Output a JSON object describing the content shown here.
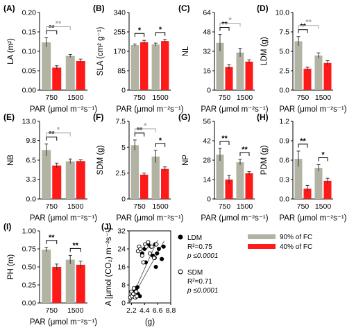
{
  "colors": {
    "fc90": "#b3b3a4",
    "fc40": "#ff1a1a",
    "sig_strong": "#000000",
    "sig_weak": "#a6a6a6"
  },
  "legend": [
    {
      "label": "90% of FC",
      "color": "#b3b3a4"
    },
    {
      "label": "40% of FC",
      "color": "#ff1a1a"
    }
  ],
  "scatter_legend": [
    {
      "label": "LDM",
      "marker": "filled-circle",
      "r2": "R²=0.75",
      "p": "p ≤0.0001"
    },
    {
      "label": "SDM",
      "marker": "open-circle",
      "r2": "R²=0.71",
      "p": "p ≤0.0001"
    }
  ],
  "chart_data": [
    {
      "id": "A",
      "title": "(A)",
      "type": "bar",
      "ylabel": "LA (m²)",
      "xlabel": "PAR (μmol m⁻²s⁻¹)",
      "categories": [
        "750",
        "1500"
      ],
      "ylim": [
        0,
        0.2
      ],
      "yticks": [
        0,
        0.05,
        0.1,
        0.15,
        0.2
      ],
      "ytick_labels": [
        "0.00",
        "0.05",
        "0.10",
        "0.15",
        "0.20"
      ],
      "series": [
        {
          "name": "90% of FC",
          "values": [
            0.123,
            0.088
          ],
          "err": [
            0.012,
            0.004
          ]
        },
        {
          "name": "40% of FC",
          "values": [
            0.058,
            0.075
          ],
          "err": [
            0.005,
            0.005
          ]
        }
      ],
      "annotations": [
        {
          "type": "within",
          "cat": 0,
          "text": "**",
          "style": "strong"
        },
        {
          "type": "between",
          "series": 0,
          "text": "**",
          "style": "weak"
        }
      ]
    },
    {
      "id": "B",
      "title": "(B)",
      "type": "bar",
      "ylabel": "SLA (cm² g⁻¹)",
      "xlabel": "PAR (μmol m⁻²s⁻¹)",
      "categories": [
        "750",
        "1500"
      ],
      "ylim": [
        0,
        340
      ],
      "yticks": [
        0,
        85,
        170,
        255,
        340
      ],
      "ytick_labels": [
        "0",
        "85",
        "170",
        "255",
        "340"
      ],
      "series": [
        {
          "name": "90% of FC",
          "values": [
            197,
            200
          ],
          "err": [
            5,
            6
          ]
        },
        {
          "name": "40% of FC",
          "values": [
            210,
            215
          ],
          "err": [
            8,
            7
          ]
        }
      ],
      "annotations": [
        {
          "type": "within",
          "cat": 0,
          "text": "*",
          "style": "strong"
        },
        {
          "type": "within",
          "cat": 1,
          "text": "*",
          "style": "strong"
        }
      ]
    },
    {
      "id": "C",
      "title": "(C)",
      "type": "bar",
      "ylabel": "NL",
      "xlabel": "PAR (μmol m⁻²s⁻¹)",
      "categories": [
        "750",
        "1500"
      ],
      "ylim": [
        0,
        64
      ],
      "yticks": [
        0,
        16,
        32,
        48,
        64
      ],
      "ytick_labels": [
        "0",
        "16",
        "32",
        "48",
        "64"
      ],
      "series": [
        {
          "name": "90% of FC",
          "values": [
            39,
            31
          ],
          "err": [
            7,
            3.5
          ]
        },
        {
          "name": "40% of FC",
          "values": [
            19,
            23.5
          ],
          "err": [
            2,
            1.5
          ]
        }
      ],
      "annotations": [
        {
          "type": "within",
          "cat": 0,
          "text": "**",
          "style": "strong"
        },
        {
          "type": "between",
          "series": 0,
          "text": "*",
          "style": "weak"
        }
      ]
    },
    {
      "id": "D",
      "title": "(D)",
      "type": "bar",
      "ylabel": "LDM (g)",
      "xlabel": "PAR (μmol m⁻²s⁻¹)",
      "categories": [
        "750",
        "1500"
      ],
      "ylim": [
        0,
        10
      ],
      "yticks": [
        0,
        2.5,
        5.0,
        7.5,
        10.0
      ],
      "ytick_labels": [
        "0.0",
        "2.5",
        "5.0",
        "7.5",
        "10.0"
      ],
      "series": [
        {
          "name": "90% of FC",
          "values": [
            6.3,
            4.45
          ],
          "err": [
            0.6,
            0.35
          ]
        },
        {
          "name": "40% of FC",
          "values": [
            2.75,
            3.5
          ],
          "err": [
            0.2,
            0.3
          ]
        }
      ],
      "annotations": [
        {
          "type": "within",
          "cat": 0,
          "text": "**",
          "style": "strong"
        },
        {
          "type": "between",
          "series": 0,
          "text": "**",
          "style": "weak"
        }
      ]
    },
    {
      "id": "E",
      "title": "(E)",
      "type": "bar",
      "ylabel": "NB",
      "xlabel": "PAR (μmol m⁻²s⁻¹)",
      "categories": [
        "750",
        "1500"
      ],
      "ylim": [
        0,
        13
      ],
      "yticks": [
        0,
        3.3,
        6.5,
        9.8,
        13.0
      ],
      "ytick_labels": [
        "0.0",
        "3.3",
        "6.5",
        "9.8",
        "13.0"
      ],
      "series": [
        {
          "name": "90% of FC",
          "values": [
            8.2,
            6.3
          ],
          "err": [
            1.0,
            0.4
          ]
        },
        {
          "name": "40% of FC",
          "values": [
            5.6,
            6.35
          ],
          "err": [
            0.4,
            0.2
          ]
        }
      ],
      "annotations": [
        {
          "type": "within",
          "cat": 0,
          "text": "**",
          "style": "strong"
        },
        {
          "type": "between",
          "series": 0,
          "text": "*",
          "style": "weak"
        }
      ]
    },
    {
      "id": "F",
      "title": "(F)",
      "type": "bar",
      "ylabel": "SDM (g)",
      "xlabel": "PAR (μmol m⁻²s⁻¹)",
      "categories": [
        "750",
        "1500"
      ],
      "ylim": [
        0,
        7.5
      ],
      "yticks": [
        0,
        2.5,
        5,
        7.5
      ],
      "ytick_labels": [
        "0",
        "2.5",
        "5",
        "7.5"
      ],
      "series": [
        {
          "name": "90% of FC",
          "values": [
            5.2,
            4.1
          ],
          "err": [
            0.5,
            0.6
          ]
        },
        {
          "name": "40% of FC",
          "values": [
            2.35,
            2.9
          ],
          "err": [
            0.15,
            0.2
          ]
        }
      ],
      "annotations": [
        {
          "type": "within",
          "cat": 0,
          "text": "**",
          "style": "strong"
        },
        {
          "type": "within",
          "cat": 1,
          "text": "*",
          "style": "strong"
        },
        {
          "type": "between",
          "series": 0,
          "text": "*",
          "style": "weak"
        }
      ]
    },
    {
      "id": "G",
      "title": "(G)",
      "type": "bar",
      "ylabel": "NP",
      "xlabel": "PAR (μmol m⁻²s⁻¹)",
      "categories": [
        "750",
        "1500"
      ],
      "ylim": [
        0,
        56
      ],
      "yticks": [
        0,
        14,
        28,
        42,
        56
      ],
      "ytick_labels": [
        "0",
        "14",
        "28",
        "42",
        "56"
      ],
      "series": [
        {
          "name": "90% of FC",
          "values": [
            32,
            26.5
          ],
          "err": [
            4.5,
            2
          ]
        },
        {
          "name": "40% of FC",
          "values": [
            14,
            18.5
          ],
          "err": [
            3,
            1.2
          ]
        }
      ],
      "annotations": [
        {
          "type": "within",
          "cat": 0,
          "text": "**",
          "style": "strong"
        },
        {
          "type": "within",
          "cat": 1,
          "text": "**",
          "style": "strong"
        }
      ]
    },
    {
      "id": "H",
      "title": "(H)",
      "type": "bar",
      "ylabel": "PDM (g)",
      "xlabel": "PAR (μmol m⁻²s⁻¹)",
      "categories": [
        "750",
        "1500"
      ],
      "ylim": [
        0,
        1.2
      ],
      "yticks": [
        0,
        0.3,
        0.6,
        0.9,
        1.2
      ],
      "ytick_labels": [
        "0.0",
        "0.3",
        "0.6",
        "0.9",
        "1.2"
      ],
      "series": [
        {
          "name": "90% of FC",
          "values": [
            0.62,
            0.48
          ],
          "err": [
            0.12,
            0.05
          ]
        },
        {
          "name": "40% of FC",
          "values": [
            0.16,
            0.28
          ],
          "err": [
            0.05,
            0.04
          ]
        }
      ],
      "annotations": [
        {
          "type": "within",
          "cat": 0,
          "text": "**",
          "style": "strong"
        },
        {
          "type": "within",
          "cat": 1,
          "text": "*",
          "style": "strong"
        }
      ]
    },
    {
      "id": "I",
      "title": "(I)",
      "type": "bar",
      "ylabel": "PH (m)",
      "xlabel": "PAR (μmol m⁻²s⁻¹)",
      "categories": [
        "750",
        "1500"
      ],
      "ylim": [
        0,
        1.0
      ],
      "yticks": [
        0,
        0.25,
        0.5,
        0.75,
        1.0
      ],
      "ytick_labels": [
        "0.00",
        "0.25",
        "0.50",
        "0.75",
        "1.00"
      ],
      "series": [
        {
          "name": "90% of FC",
          "values": [
            0.74,
            0.6
          ],
          "err": [
            0.03,
            0.06
          ]
        },
        {
          "name": "40% of FC",
          "values": [
            0.5,
            0.53
          ],
          "err": [
            0.04,
            0.05
          ]
        }
      ],
      "annotations": [
        {
          "type": "within",
          "cat": 0,
          "text": "**",
          "style": "strong"
        },
        {
          "type": "within",
          "cat": 1,
          "text": "**",
          "style": "strong"
        }
      ]
    },
    {
      "id": "J",
      "title": "(J)",
      "type": "scatter",
      "ylabel": "A [μmol (CO₂) m⁻²s⁻¹]",
      "xlabel": "(g)",
      "xlim": [
        1.8,
        8.8
      ],
      "ylim": [
        0,
        32
      ],
      "xticks": [
        2.2,
        4.4,
        6.6,
        8.8
      ],
      "xtick_labels": [
        "2.2",
        "4.4",
        "6.6",
        "8.8"
      ],
      "yticks": [
        0,
        8,
        16,
        24,
        32
      ],
      "ytick_labels": [
        "0",
        "8",
        "16",
        "24",
        "32"
      ],
      "series": [
        {
          "name": "LDM",
          "marker": "filled",
          "x": [
            2.4,
            2.7,
            2.9,
            3.0,
            3.3,
            3.6,
            4.0,
            4.4,
            4.6,
            5.0,
            5.5,
            5.8,
            6.1,
            6.2,
            6.5,
            6.8,
            7.3,
            7.6,
            3.2,
            6.3
          ],
          "y": [
            3.5,
            5,
            2.5,
            6.5,
            4,
            3,
            22,
            24,
            18,
            26,
            25,
            21,
            20,
            26,
            22,
            24,
            19.5,
            25,
            7,
            16
          ]
        },
        {
          "name": "SDM",
          "marker": "open",
          "x": [
            2.0,
            2.2,
            2.3,
            2.5,
            2.6,
            2.8,
            3.0,
            3.1,
            3.3,
            3.5,
            3.7,
            4.0,
            4.2,
            4.5,
            4.7,
            5.0,
            5.3,
            5.6,
            6.0,
            6.4
          ],
          "y": [
            2.5,
            5,
            3,
            4,
            6.5,
            2.5,
            5,
            3,
            23,
            25,
            24,
            21,
            18,
            26,
            25,
            27,
            22,
            25,
            20,
            26
          ]
        }
      ],
      "fits": [
        {
          "series": "LDM",
          "x": [
            2.0,
            7.7
          ],
          "y": [
            0.5,
            27.5
          ]
        },
        {
          "series": "SDM",
          "x": [
            1.9,
            6.6
          ],
          "y": [
            0.5,
            28.0
          ]
        }
      ]
    }
  ]
}
